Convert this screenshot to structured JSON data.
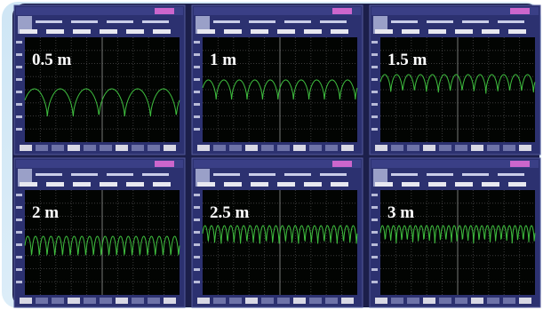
{
  "panels": [
    {
      "label": "0.5 m"
    },
    {
      "label": "1 m"
    },
    {
      "label": "1.5 m"
    },
    {
      "label": "2 m"
    },
    {
      "label": "2.5 m"
    },
    {
      "label": "3 m"
    }
  ]
}
